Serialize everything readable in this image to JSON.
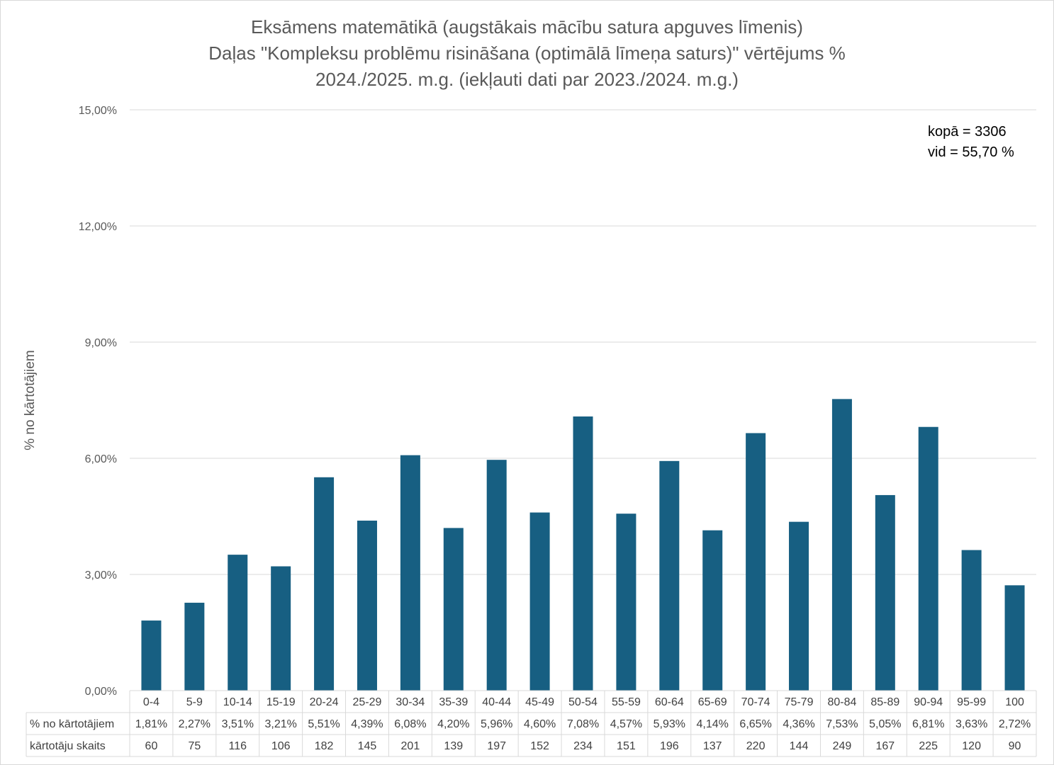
{
  "chart_data": {
    "type": "bar",
    "title_lines": [
      "Eksāmens matemātikā (augstākais mācību satura apguves līmenis)",
      "Daļas \"Kompleksu problēmu risināšana (optimālā līmeņa saturs)\" vērtējums %",
      "2024./2025. m.g. (iekļauti dati par 2023./2024. m.g.)"
    ],
    "ylabel": "% no kārtotājiem",
    "xlabel": "",
    "ylim": [
      0,
      15
    ],
    "yticks": [
      "0,00%",
      "3,00%",
      "6,00%",
      "9,00%",
      "12,00%",
      "15,00%"
    ],
    "ytick_values": [
      0,
      3,
      6,
      9,
      12,
      15
    ],
    "grid": true,
    "bar_color": "#175f82",
    "categories": [
      "0-4",
      "5-9",
      "10-14",
      "15-19",
      "20-24",
      "25-29",
      "30-34",
      "35-39",
      "40-44",
      "45-49",
      "50-54",
      "55-59",
      "60-64",
      "65-69",
      "70-74",
      "75-79",
      "80-84",
      "85-89",
      "90-94",
      "95-99",
      "100"
    ],
    "series": [
      {
        "name": "% no kārtotājiem",
        "values": [
          1.81,
          2.27,
          3.51,
          3.21,
          5.51,
          4.39,
          6.08,
          4.2,
          5.96,
          4.6,
          7.08,
          4.57,
          5.93,
          4.14,
          6.65,
          4.36,
          7.53,
          5.05,
          6.81,
          3.63,
          2.72
        ],
        "labels": [
          "1,81%",
          "2,27%",
          "3,51%",
          "3,21%",
          "5,51%",
          "4,39%",
          "6,08%",
          "4,20%",
          "5,96%",
          "4,60%",
          "7,08%",
          "4,57%",
          "5,93%",
          "4,14%",
          "6,65%",
          "4,36%",
          "7,53%",
          "5,05%",
          "6,81%",
          "3,63%",
          "2,72%"
        ]
      },
      {
        "name": "kārtotāju skaits",
        "values": [
          60,
          75,
          116,
          106,
          182,
          145,
          201,
          139,
          197,
          152,
          234,
          151,
          196,
          137,
          220,
          144,
          249,
          167,
          225,
          120,
          90
        ],
        "labels": [
          "60",
          "75",
          "116",
          "106",
          "182",
          "145",
          "201",
          "139",
          "197",
          "152",
          "234",
          "151",
          "196",
          "137",
          "220",
          "144",
          "249",
          "167",
          "225",
          "120",
          "90"
        ]
      }
    ],
    "annotations": {
      "total": "kopā = 3306",
      "mean": "vid = 55,70 %"
    }
  }
}
